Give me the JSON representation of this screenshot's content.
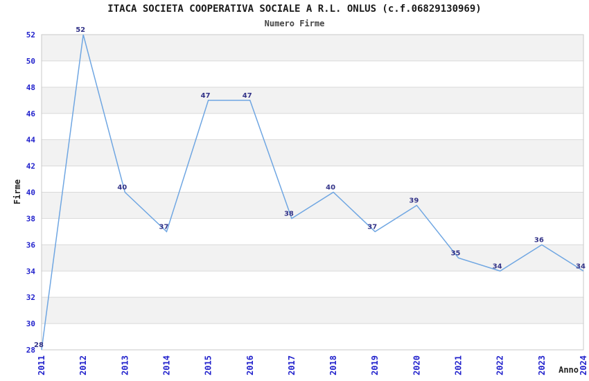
{
  "chart_data": {
    "type": "line",
    "title": "ITACA SOCIETA COOPERATIVA SOCIALE A R.L. ONLUS (c.f.06829130969)",
    "subtitle": "Numero Firme",
    "xlabel": "Anno",
    "ylabel": "Firme",
    "categories": [
      "2011",
      "2012",
      "2013",
      "2014",
      "2015",
      "2016",
      "2017",
      "2018",
      "2019",
      "2020",
      "2021",
      "2022",
      "2023",
      "2024"
    ],
    "values": [
      28,
      52,
      40,
      37,
      47,
      47,
      38,
      40,
      37,
      39,
      35,
      34,
      36,
      34
    ],
    "ylim": [
      28,
      52
    ],
    "ytick_step": 2,
    "grid": true,
    "legend": "none",
    "colors": {
      "line": "#6fa6e2",
      "tick_label": "#2222cc",
      "data_label": "#333388",
      "band": "#f2f2f2",
      "gridline": "#d9d9d9",
      "plot_border": "#c9c9c9",
      "background": "#ffffff"
    }
  }
}
